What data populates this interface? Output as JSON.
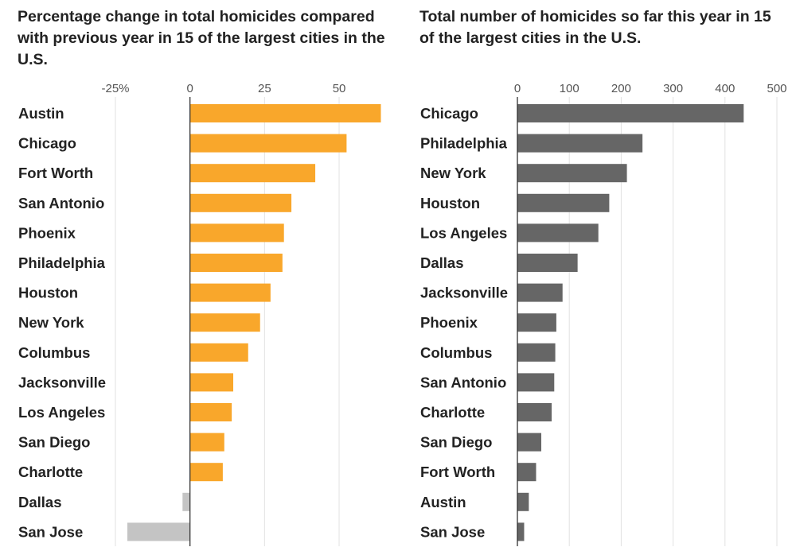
{
  "chart_data": [
    {
      "type": "bar",
      "orientation": "horizontal",
      "title": "Percentage change in total homicides compared with previous year in 15 of the largest cities in the U.S.",
      "categories": [
        "Austin",
        "Chicago",
        "Fort Worth",
        "San Antonio",
        "Phoenix",
        "Philadelphia",
        "Houston",
        "New York",
        "Columbus",
        "Jacksonville",
        "Los Angeles",
        "San Diego",
        "Charlotte",
        "Dallas",
        "San Jose"
      ],
      "values": [
        64,
        52.5,
        42,
        34,
        31.5,
        31,
        27,
        23.5,
        19.5,
        14.5,
        14,
        11.5,
        11,
        -2.5,
        -21
      ],
      "xlim": [
        -25,
        62
      ],
      "xticks": [
        -25,
        0,
        25,
        50
      ],
      "xtick_labels": [
        "-25%",
        "0",
        "25",
        "50"
      ],
      "grid": true,
      "colors": {
        "positive": "#f9a72b",
        "negative": "#c4c4c4",
        "grid": "#e2e2e2",
        "axis": "#333333"
      }
    },
    {
      "type": "bar",
      "orientation": "horizontal",
      "title": "Total number of homicides so far this year in 15 of the largest cities in the U.S.",
      "categories": [
        "Chicago",
        "Philadelphia",
        "New York",
        "Houston",
        "Los Angeles",
        "Dallas",
        "Jacksonville",
        "Phoenix",
        "Columbus",
        "San Antonio",
        "Charlotte",
        "San Diego",
        "Fort Worth",
        "Austin",
        "San Jose"
      ],
      "values": [
        436,
        241,
        211,
        177,
        156,
        116,
        87,
        75,
        73,
        71,
        66,
        46,
        36,
        22,
        13
      ],
      "xlim": [
        0,
        500
      ],
      "xticks": [
        0,
        100,
        200,
        300,
        400,
        500
      ],
      "xtick_labels": [
        "0",
        "100",
        "200",
        "300",
        "400",
        "500"
      ],
      "grid": true,
      "colors": {
        "bar": "#666666",
        "grid": "#e2e2e2",
        "axis": "#333333"
      }
    }
  ]
}
